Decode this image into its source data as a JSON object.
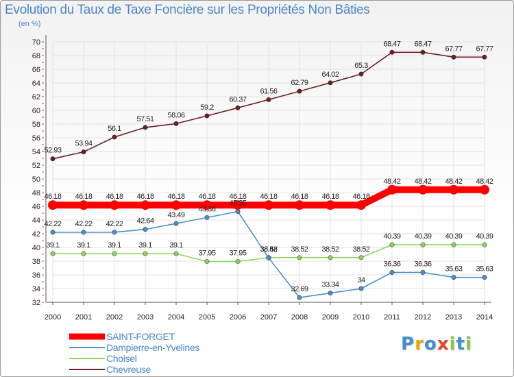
{
  "chart_data": {
    "type": "line",
    "title": "Evolution du Taux de Taxe Foncière sur les Propriétés Non Bâties",
    "ylabel": "(en %)",
    "xlabel": "",
    "ylim": [
      32,
      70
    ],
    "yticks": [
      "32",
      "34",
      "36",
      "38",
      "40",
      "42",
      "44",
      "46",
      "48",
      "50",
      "52",
      "54",
      "56",
      "58",
      "60",
      "62",
      "64",
      "66",
      "68",
      "70"
    ],
    "categories": [
      "2000",
      "2001",
      "2002",
      "2003",
      "2004",
      "2005",
      "2006",
      "2007",
      "2008",
      "2009",
      "2010",
      "2011",
      "2012",
      "2013",
      "2014"
    ],
    "series": [
      {
        "name": "SAINT-FORGET",
        "color": "#ff0000",
        "values": [
          46.18,
          46.18,
          46.18,
          46.18,
          46.18,
          46.18,
          46.18,
          46.18,
          46.18,
          46.18,
          46.18,
          48.42,
          48.42,
          48.42,
          48.42
        ],
        "labels": [
          "46.18",
          "46.18",
          "46.18",
          "46.18",
          "46.18",
          "46.18",
          "46.18",
          "46.18",
          "46.18",
          "46.18",
          "46.18",
          "48.42",
          "48.42",
          "48.42",
          "48.42"
        ]
      },
      {
        "name": "Dampierre-en-Yvelines",
        "color": "#4f8fc9",
        "values": [
          42.22,
          42.22,
          42.22,
          42.64,
          43.49,
          44.36,
          45.25,
          38.48,
          32.69,
          33.34,
          34,
          36.36,
          36.36,
          35.63,
          35.63
        ],
        "labels": [
          "42.22",
          "42.22",
          "42.22",
          "42.64",
          "43.49",
          "44.36",
          "45.25",
          "38.48",
          "32.69",
          "33.34",
          "34",
          "36.36",
          "36.36",
          "35.63",
          "35.63"
        ]
      },
      {
        "name": "Choisel",
        "color": "#8ed45e",
        "values": [
          39.1,
          39.1,
          39.1,
          39.1,
          39.1,
          37.95,
          37.95,
          38.52,
          38.52,
          38.52,
          38.52,
          40.39,
          40.39,
          40.39,
          40.39
        ],
        "labels": [
          "39.1",
          "39.1",
          "39.1",
          "39.1",
          "39.1",
          "37.95",
          "37.95",
          "38.52",
          "38.52",
          "38.52",
          "38.52",
          "40.39",
          "40.39",
          "40.39",
          "40.39"
        ]
      },
      {
        "name": "Chevreuse",
        "color": "#6e1f25",
        "values": [
          52.93,
          53.94,
          56.1,
          57.51,
          58.06,
          59.2,
          60.37,
          61.56,
          62.79,
          64.02,
          65.3,
          68.47,
          68.47,
          67.77,
          67.77
        ],
        "labels": [
          "52.93",
          "53.94",
          "56.1",
          "57.51",
          "58.06",
          "59.2",
          "60.37",
          "61.56",
          "62.79",
          "64.02",
          "65.3",
          "68.47",
          "68.47",
          "67.77",
          "67.77"
        ]
      }
    ]
  },
  "brand": {
    "letters": [
      "P",
      "r",
      "o",
      "x",
      "i",
      "t",
      "i"
    ],
    "colors": [
      "#3f8fd1",
      "#f0a20d",
      "#3f8fd1",
      "#e6452e",
      "#8cc63f",
      "#3f8fd1",
      "#8cc63f"
    ]
  }
}
